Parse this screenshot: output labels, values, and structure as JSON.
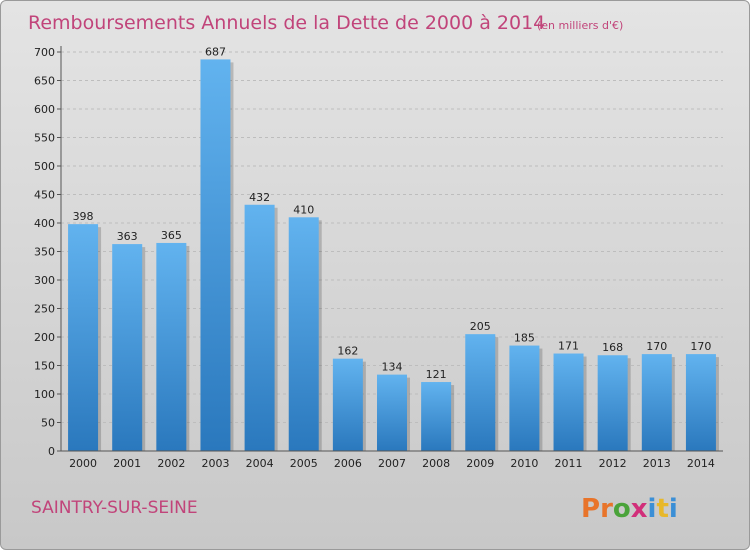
{
  "chart_data": {
    "type": "bar",
    "title": "Remboursements Annuels de la Dette de 2000 à 2014",
    "subtitle": "(en milliers d'€)",
    "categories": [
      "2000",
      "2001",
      "2002",
      "2003",
      "2004",
      "2005",
      "2006",
      "2007",
      "2008",
      "2009",
      "2010",
      "2011",
      "2012",
      "2013",
      "2014"
    ],
    "values": [
      398,
      363,
      365,
      687,
      432,
      410,
      162,
      134,
      121,
      205,
      185,
      171,
      168,
      170,
      170
    ],
    "ylim": [
      0,
      700
    ],
    "yticks": [
      0,
      50,
      100,
      150,
      200,
      250,
      300,
      350,
      400,
      450,
      500,
      550,
      600,
      650,
      700
    ],
    "xlabel": "",
    "ylabel": "",
    "grid": true
  },
  "footer": {
    "city": "SAINTRY-SUR-SEINE",
    "logo_letters": [
      "P",
      "r",
      "o",
      "x",
      "i",
      "t",
      "i"
    ]
  },
  "colors": {
    "bar_top": "#62b3ef",
    "bar_bottom": "#2a78bd",
    "title": "#c1447a",
    "logo": [
      "#e8742a",
      "#e8742a",
      "#4aa33a",
      "#d12f7a",
      "#3b8fd6",
      "#e8b82a",
      "#3b8fd6"
    ]
  }
}
